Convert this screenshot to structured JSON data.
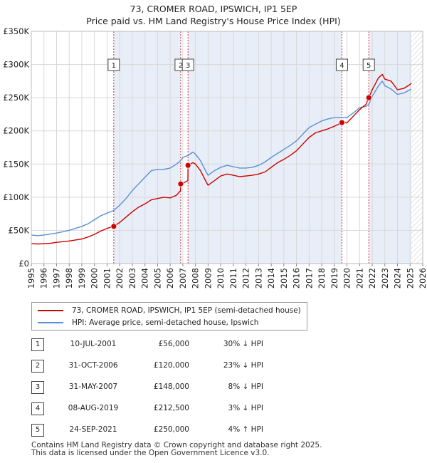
{
  "header": {
    "title_line1": "73, CROMER ROAD, IPSWICH, IP1 5EP",
    "title_line2": "Price paid vs. HM Land Registry's House Price Index (HPI)"
  },
  "chart_data": {
    "type": "line",
    "x_range": [
      1995,
      2026
    ],
    "y_range": [
      0,
      350000
    ],
    "y_ticks": [
      {
        "value": 0,
        "label": "£0"
      },
      {
        "value": 50000,
        "label": "£50K"
      },
      {
        "value": 100000,
        "label": "£100K"
      },
      {
        "value": 150000,
        "label": "£150K"
      },
      {
        "value": 200000,
        "label": "£200K"
      },
      {
        "value": 250000,
        "label": "£250K"
      },
      {
        "value": 300000,
        "label": "£300K"
      },
      {
        "value": 350000,
        "label": "£350K"
      }
    ],
    "x_ticks": [
      "1995",
      "1996",
      "1997",
      "1998",
      "1999",
      "2000",
      "2001",
      "2002",
      "2003",
      "2004",
      "2005",
      "2006",
      "2007",
      "2008",
      "2009",
      "2010",
      "2011",
      "2012",
      "2013",
      "2014",
      "2015",
      "2016",
      "2017",
      "2018",
      "2019",
      "2020",
      "2021",
      "2022",
      "2023",
      "2024",
      "2025",
      "2026"
    ],
    "grid": true,
    "future_hatch_from": 2025.1,
    "shaded_periods": [
      [
        2001.53,
        2006.83
      ],
      [
        2007.41,
        2019.6
      ],
      [
        2021.73,
        2025.1
      ]
    ],
    "colors": {
      "property": "#cc0000",
      "hpi": "#5b8fd4",
      "grid": "#d8d8d8",
      "shade": "#e8eef8"
    },
    "series": [
      {
        "name": "73, CROMER ROAD, IPSWICH, IP1 5EP (semi-detached house)",
        "color": "#cc0000",
        "points": [
          [
            1995,
            30000
          ],
          [
            1995.5,
            29500
          ],
          [
            1996,
            30000
          ],
          [
            1996.5,
            30500
          ],
          [
            1997,
            32000
          ],
          [
            1997.5,
            33000
          ],
          [
            1998,
            34000
          ],
          [
            1998.5,
            35500
          ],
          [
            1999,
            37000
          ],
          [
            1999.5,
            40000
          ],
          [
            2000,
            44000
          ],
          [
            2000.5,
            49000
          ],
          [
            2001,
            53000
          ],
          [
            2001.53,
            56000
          ],
          [
            2002,
            62000
          ],
          [
            2002.5,
            70000
          ],
          [
            2003,
            78000
          ],
          [
            2003.5,
            85000
          ],
          [
            2004,
            90000
          ],
          [
            2004.5,
            96000
          ],
          [
            2005,
            98000
          ],
          [
            2005.5,
            100000
          ],
          [
            2006,
            99000
          ],
          [
            2006.5,
            103000
          ],
          [
            2006.82,
            110000
          ],
          [
            2006.83,
            120000
          ],
          [
            2007,
            121000
          ],
          [
            2007.4,
            125000
          ],
          [
            2007.41,
            148000
          ],
          [
            2007.8,
            152000
          ],
          [
            2008,
            150000
          ],
          [
            2008.4,
            140000
          ],
          [
            2008.8,
            125000
          ],
          [
            2009,
            118000
          ],
          [
            2009.5,
            125000
          ],
          [
            2010,
            132000
          ],
          [
            2010.5,
            135000
          ],
          [
            2011,
            133000
          ],
          [
            2011.5,
            131000
          ],
          [
            2012,
            132000
          ],
          [
            2012.5,
            133000
          ],
          [
            2013,
            135000
          ],
          [
            2013.5,
            138000
          ],
          [
            2014,
            145000
          ],
          [
            2014.5,
            152000
          ],
          [
            2015,
            157000
          ],
          [
            2015.5,
            163000
          ],
          [
            2016,
            170000
          ],
          [
            2016.5,
            180000
          ],
          [
            2017,
            190000
          ],
          [
            2017.5,
            197000
          ],
          [
            2018,
            200000
          ],
          [
            2018.5,
            203000
          ],
          [
            2019,
            207000
          ],
          [
            2019.6,
            212500
          ],
          [
            2020,
            212000
          ],
          [
            2020.5,
            222000
          ],
          [
            2021,
            232000
          ],
          [
            2021.5,
            240000
          ],
          [
            2021.73,
            250000
          ],
          [
            2022,
            262000
          ],
          [
            2022.5,
            280000
          ],
          [
            2022.8,
            285000
          ],
          [
            2023,
            278000
          ],
          [
            2023.5,
            275000
          ],
          [
            2024,
            262000
          ],
          [
            2024.5,
            264000
          ],
          [
            2025,
            270000
          ],
          [
            2025.1,
            272000
          ]
        ]
      },
      {
        "name": "HPI: Average price, semi-detached house, Ipswich",
        "color": "#5b8fd4",
        "points": [
          [
            1995,
            43000
          ],
          [
            1995.5,
            42000
          ],
          [
            1996,
            43000
          ],
          [
            1996.5,
            44500
          ],
          [
            1997,
            46000
          ],
          [
            1997.5,
            48000
          ],
          [
            1998,
            50000
          ],
          [
            1998.5,
            53000
          ],
          [
            1999,
            56000
          ],
          [
            1999.5,
            60000
          ],
          [
            2000,
            66000
          ],
          [
            2000.5,
            72000
          ],
          [
            2001,
            76000
          ],
          [
            2001.53,
            80000
          ],
          [
            2002,
            88000
          ],
          [
            2002.5,
            98000
          ],
          [
            2003,
            110000
          ],
          [
            2003.5,
            120000
          ],
          [
            2004,
            130000
          ],
          [
            2004.5,
            140000
          ],
          [
            2005,
            142000
          ],
          [
            2005.5,
            142000
          ],
          [
            2006,
            144000
          ],
          [
            2006.5,
            150000
          ],
          [
            2006.83,
            155000
          ],
          [
            2007,
            160000
          ],
          [
            2007.41,
            163000
          ],
          [
            2007.8,
            168000
          ],
          [
            2008,
            165000
          ],
          [
            2008.4,
            155000
          ],
          [
            2008.8,
            140000
          ],
          [
            2009,
            133000
          ],
          [
            2009.5,
            140000
          ],
          [
            2010,
            145000
          ],
          [
            2010.5,
            148000
          ],
          [
            2011,
            146000
          ],
          [
            2011.5,
            144000
          ],
          [
            2012,
            144000
          ],
          [
            2012.5,
            145000
          ],
          [
            2013,
            148000
          ],
          [
            2013.5,
            153000
          ],
          [
            2014,
            160000
          ],
          [
            2014.5,
            166000
          ],
          [
            2015,
            172000
          ],
          [
            2015.5,
            178000
          ],
          [
            2016,
            185000
          ],
          [
            2016.5,
            195000
          ],
          [
            2017,
            205000
          ],
          [
            2017.5,
            210000
          ],
          [
            2018,
            215000
          ],
          [
            2018.5,
            218000
          ],
          [
            2019,
            220000
          ],
          [
            2019.6,
            220000
          ],
          [
            2020,
            220000
          ],
          [
            2020.5,
            227000
          ],
          [
            2021,
            235000
          ],
          [
            2021.5,
            237000
          ],
          [
            2021.73,
            240000
          ],
          [
            2022,
            252000
          ],
          [
            2022.5,
            268000
          ],
          [
            2022.8,
            275000
          ],
          [
            2023,
            268000
          ],
          [
            2023.5,
            263000
          ],
          [
            2024,
            255000
          ],
          [
            2024.5,
            257000
          ],
          [
            2025,
            262000
          ],
          [
            2025.1,
            263000
          ]
        ]
      }
    ],
    "markers": [
      {
        "label": "1",
        "year": 2001.53,
        "value": 56000
      },
      {
        "label": "2",
        "year": 2006.83,
        "value": 120000
      },
      {
        "label": "3",
        "year": 2007.41,
        "value": 148000
      },
      {
        "label": "4",
        "year": 2019.6,
        "value": 212500
      },
      {
        "label": "5",
        "year": 2021.73,
        "value": 250000
      }
    ]
  },
  "legend": {
    "property_label": "73, CROMER ROAD, IPSWICH, IP1 5EP (semi-detached house)",
    "hpi_label": "HPI: Average price, semi-detached house, Ipswich"
  },
  "transactions": [
    {
      "num": "1",
      "date": "10-JUL-2001",
      "price": "£56,000",
      "hpi": "30% ↓ HPI"
    },
    {
      "num": "2",
      "date": "31-OCT-2006",
      "price": "£120,000",
      "hpi": "23% ↓ HPI"
    },
    {
      "num": "3",
      "date": "31-MAY-2007",
      "price": "£148,000",
      "hpi": "8% ↓ HPI"
    },
    {
      "num": "4",
      "date": "08-AUG-2019",
      "price": "£212,500",
      "hpi": "3% ↓ HPI"
    },
    {
      "num": "5",
      "date": "24-SEP-2021",
      "price": "£250,000",
      "hpi": "4% ↑ HPI"
    }
  ],
  "footer": {
    "line1": "Contains HM Land Registry data © Crown copyright and database right 2025.",
    "line2": "This data is licensed under the Open Government Licence v3.0."
  }
}
